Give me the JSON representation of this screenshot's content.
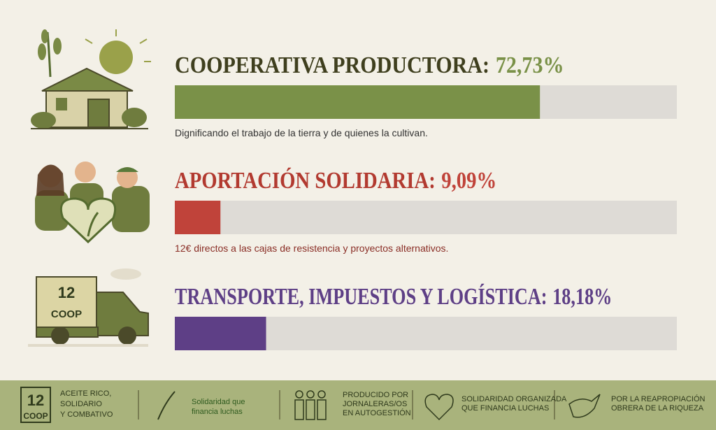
{
  "xlim": [
    0,
    100
  ],
  "items": [
    {
      "label": "COOPERATIVA PRODUCTORA:",
      "value": 72.73,
      "value_label": "72,73%",
      "description": "Dignificando el trabajo de la tierra y de quienes la cultivan.",
      "color": "#7a9148",
      "label_color": "#3f3f1e"
    },
    {
      "label": "APORTACIÓN SOLIDARIA:",
      "value": 9.09,
      "value_label": "9,09%",
      "description": "12€ directos a las cajas de resistencia y proyectos alternativos.",
      "color": "#c0433a",
      "label_color": "#b23a30"
    },
    {
      "label": "TRANSPORTE, IMPUESTOS Y LOGÍSTICA:",
      "value": 18.18,
      "value_label": "18,18%",
      "color": "#5e3f86",
      "label_color": "#5e3f86"
    }
  ],
  "truck": {
    "number": "12",
    "sub": "COOP"
  },
  "footer": {
    "brand": {
      "number": "12",
      "sub": "COOP"
    },
    "tagline": [
      "ACEITE RICO,",
      "SOLIDARIO",
      "Y COMBATIVO"
    ],
    "motto": [
      "Solidaridad que",
      "financia luchas"
    ],
    "produced": [
      "PRODUCIDO POR",
      "JORNALERAS/OS",
      "EN AUTOGESTIÓN"
    ],
    "organized": [
      "SOLIDARIDAD ORGANIZADA",
      "QUE FINANCIA LUCHAS"
    ],
    "reappropriation": [
      "POR LA REAPROPIACIÓN",
      "OBRERA DE LA RIQUEZA"
    ]
  }
}
